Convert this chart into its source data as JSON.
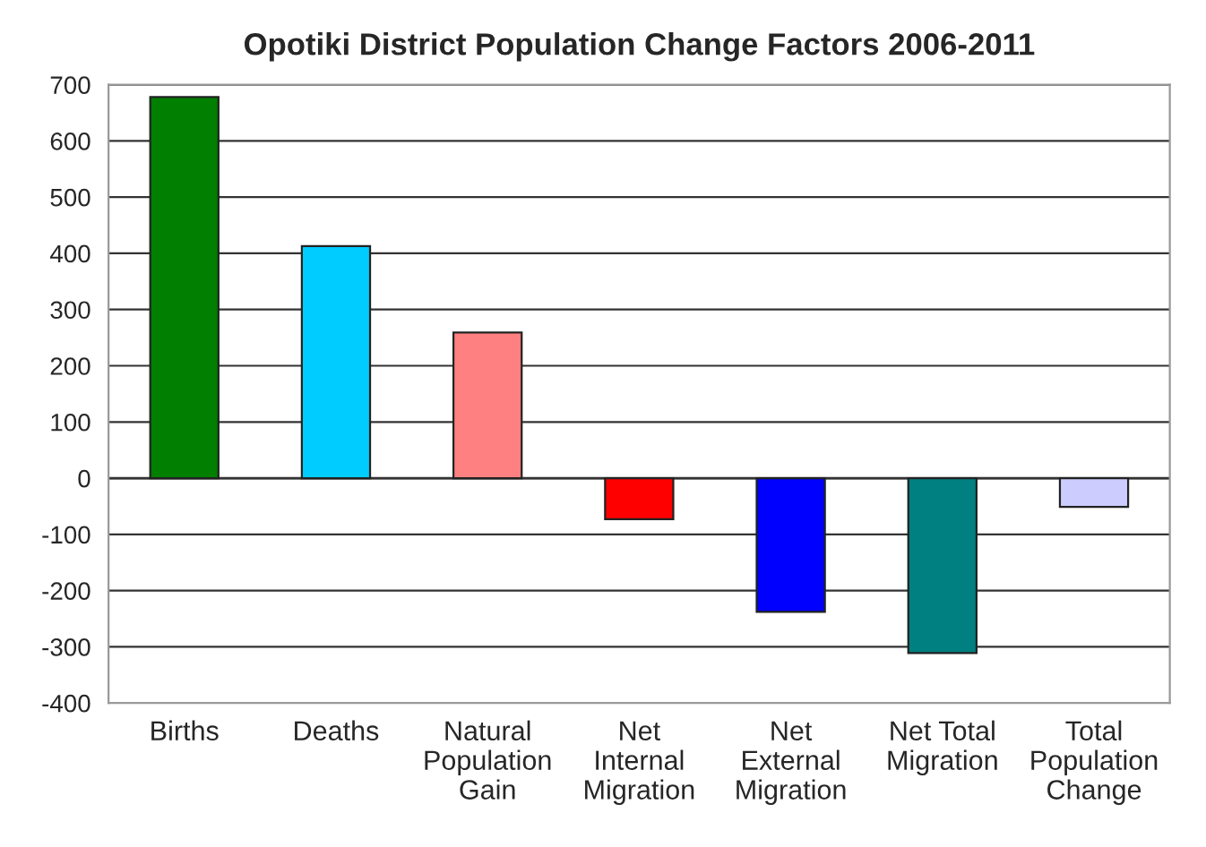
{
  "chart_data": {
    "type": "bar",
    "title": "Opotiki District Population Change Factors 2006-2011",
    "categories": [
      "Births",
      "Deaths",
      "Natural\nPopulation\nGain",
      "Net\nInternal\nMigration",
      "Net\nExternal\nMigration",
      "Net Total\nMigration",
      "Total\nPopulation\nChange"
    ],
    "values": [
      678,
      413,
      259,
      -73,
      -238,
      -311,
      -51
    ],
    "colors": [
      "#007f00",
      "#00ccff",
      "#ff8080",
      "#ff0000",
      "#0000ff",
      "#008080",
      "#ccccff"
    ],
    "ylim": [
      -400,
      700
    ],
    "yticks": [
      -400,
      -300,
      -200,
      -100,
      0,
      100,
      200,
      300,
      400,
      500,
      600,
      700
    ],
    "grid": "y",
    "legend": false
  }
}
